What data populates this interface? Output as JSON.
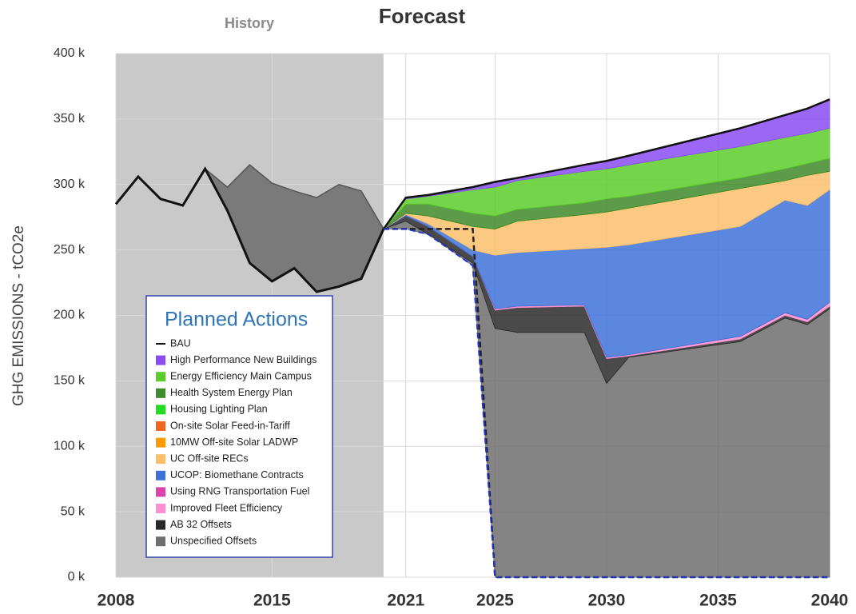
{
  "chart_data": {
    "type": "stacked-area",
    "title": "Forecast",
    "history_label": "History",
    "y_label": "GHG EMISSIONS - tCO2e",
    "legend_title": "Planned Actions",
    "xlim": [
      2008,
      2040
    ],
    "xticks": [
      2008,
      2015,
      2021,
      2025,
      2030,
      2035,
      2040
    ],
    "ylim": [
      0,
      400000
    ],
    "yticks": [
      {
        "value": 0,
        "label": "0 k"
      },
      {
        "value": 50000,
        "label": "50 k"
      },
      {
        "value": 100000,
        "label": "100 k"
      },
      {
        "value": 150000,
        "label": "150 k"
      },
      {
        "value": 200000,
        "label": "200 k"
      },
      {
        "value": 250000,
        "label": "250 k"
      },
      {
        "value": 300000,
        "label": "300 k"
      },
      {
        "value": 350000,
        "label": "350 k"
      },
      {
        "value": 400000,
        "label": "400 k"
      }
    ],
    "grid": true,
    "history": {
      "x": [
        2008,
        2009,
        2010,
        2011,
        2012,
        2013,
        2014,
        2015,
        2016,
        2017,
        2018,
        2019,
        2020
      ],
      "upper": [
        285000,
        306000,
        289000,
        284000,
        312000,
        298000,
        315000,
        301000,
        295000,
        290000,
        300000,
        295000,
        266000
      ],
      "lower": [
        285000,
        306000,
        289000,
        284000,
        312000,
        280000,
        240000,
        226000,
        236000,
        218000,
        222000,
        228000,
        266000
      ],
      "color": "#7a7a7a"
    },
    "x": [
      2020,
      2021,
      2022,
      2024,
      2025,
      2026,
      2029,
      2030,
      2031,
      2036,
      2038,
      2039,
      2040
    ],
    "base": [
      266000,
      266000,
      262000,
      238000,
      0,
      0,
      0,
      0,
      0,
      0,
      0,
      0,
      0
    ],
    "base_color": "#2233cc",
    "dashed": [
      266000,
      266000,
      266000,
      266000,
      0,
      0,
      0,
      0,
      0,
      0,
      0,
      0,
      0
    ],
    "dashed_color": "#222222",
    "series": [
      {
        "name": "BAU",
        "kind": "line",
        "color": "#111111",
        "values": [
          266000,
          290000,
          292000,
          298000,
          302000,
          305000,
          315000,
          318000,
          322000,
          343000,
          353000,
          358000,
          365000
        ]
      },
      {
        "name": "High Performance New Buildings",
        "color": "#8a4cf2",
        "values": [
          0,
          1000,
          1000,
          2000,
          4000,
          2000,
          5000,
          6000,
          7000,
          14000,
          17000,
          19000,
          22000
        ]
      },
      {
        "name": "Energy Efficiency Main Campus",
        "color": "#5ccc2a",
        "values": [
          0,
          4000,
          6000,
          18000,
          22000,
          22000,
          24000,
          23000,
          24000,
          24000,
          24000,
          23000,
          23000
        ]
      },
      {
        "name": "Health System Energy Plan",
        "color": "#3f8a2a",
        "values": [
          0,
          7000,
          9000,
          10000,
          10000,
          9000,
          9000,
          10000,
          9000,
          8000,
          9000,
          9000,
          10000
        ]
      },
      {
        "name": "Housing Lighting Plan",
        "color": "#22dd22",
        "values": [
          0,
          0,
          0,
          0,
          0,
          0,
          0,
          0,
          0,
          0,
          0,
          0,
          0
        ]
      },
      {
        "name": "On-site Solar Feed-in-Tariff",
        "color": "#ee6622",
        "values": [
          0,
          0,
          0,
          0,
          0,
          0,
          0,
          0,
          0,
          0,
          0,
          0,
          0
        ]
      },
      {
        "name": "10MW Off-site Solar LADWP",
        "color": "#ff9900",
        "values": [
          0,
          0,
          0,
          0,
          0,
          0,
          0,
          0,
          0,
          0,
          0,
          0,
          0
        ]
      },
      {
        "name": "UC Off-site RECs",
        "color": "#fbbf6c",
        "values": [
          0,
          1000,
          6000,
          18000,
          20000,
          24000,
          26000,
          27000,
          28000,
          29000,
          15000,
          23000,
          14000
        ]
      },
      {
        "name": "UCOP: Biomethane Contracts",
        "color": "#3f72d8",
        "values": [
          0,
          1000,
          2000,
          5000,
          41000,
          41000,
          43000,
          84000,
          84000,
          84000,
          86000,
          87000,
          86000
        ]
      },
      {
        "name": "Using RNG Transportation Fuel",
        "color": "#dd44aa",
        "values": [
          0,
          0,
          0,
          0,
          0,
          0,
          0,
          0,
          0,
          0,
          0,
          0,
          0
        ]
      },
      {
        "name": "Improved Fleet Efficiency",
        "color": "#ff8fd0",
        "values": [
          0,
          0,
          0,
          0,
          1000,
          1000,
          1000,
          1000,
          1000,
          2000,
          2000,
          2000,
          3000
        ]
      },
      {
        "name": "AB 32 Offsets",
        "color": "#2a2a2a",
        "values": [
          0,
          4000,
          6000,
          5000,
          14000,
          19000,
          20000,
          19000,
          1000,
          2000,
          2000,
          2000,
          2000
        ]
      },
      {
        "name": "Unspecified Offsets",
        "color": "#6e6e6e",
        "values": [
          0,
          6000,
          0,
          2000,
          190000,
          187000,
          187000,
          148000,
          168000,
          180000,
          198000,
          193000,
          205000
        ]
      }
    ]
  }
}
